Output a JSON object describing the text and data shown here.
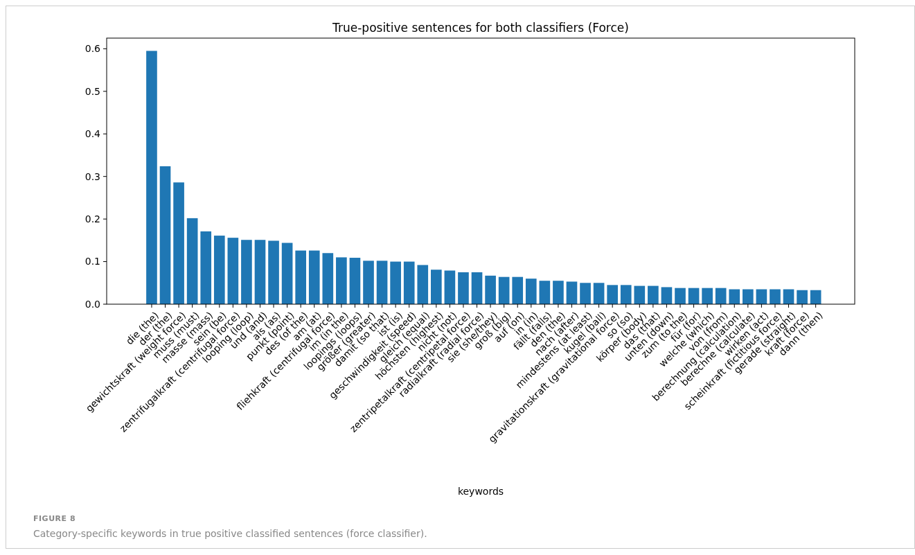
{
  "chart_data": {
    "type": "bar",
    "title": "True-positive sentences for both classifiers (Force)",
    "xlabel": "keywords",
    "categories": [
      "die (the)",
      "der (the)",
      "gewichtskraft (weight force)",
      "muss (must)",
      "masse (mass)",
      "sein (be)",
      "zentrifugalkraft (centrifugal force)",
      "looping (loop)",
      "und (and)",
      "als (as)",
      "punkt (point)",
      "des (of the)",
      "am (at)",
      "fliehkraft (centrifugal force)",
      "im (in the)",
      "loopings (loops)",
      "größer (greater)",
      "damit (so that)",
      "ist (is)",
      "geschwindigkeit (speed)",
      "gleich (equal)",
      "höchsten (highest)",
      "nicht (not)",
      "zentripetalkraft (centripetal force)",
      "radialkraft (radial force)",
      "sie (she/they)",
      "groß (big)",
      "auf (on)",
      "in (in)",
      "fällt (falls)",
      "den (the)",
      "nach (after)",
      "mindestens (at least)",
      "kugel (ball)",
      "gravitationskraft (gravitational force)",
      "so (so)",
      "körper (body)",
      "das (that)",
      "unten (down)",
      "zum (to the)",
      "für (for)",
      "welche (which)",
      "von (from)",
      "berechnung (calculation)",
      "berechne (calculate)",
      "wirken (act)",
      "scheinkraft (fictitious force)",
      "gerade (straight)",
      "kraft (force)",
      "dann (then)"
    ],
    "values": [
      0.595,
      0.324,
      0.286,
      0.202,
      0.171,
      0.161,
      0.156,
      0.151,
      0.151,
      0.149,
      0.144,
      0.126,
      0.126,
      0.12,
      0.11,
      0.109,
      0.102,
      0.102,
      0.1,
      0.1,
      0.092,
      0.081,
      0.079,
      0.075,
      0.075,
      0.067,
      0.064,
      0.064,
      0.06,
      0.055,
      0.055,
      0.053,
      0.05,
      0.05,
      0.045,
      0.045,
      0.043,
      0.043,
      0.04,
      0.038,
      0.038,
      0.038,
      0.038,
      0.035,
      0.035,
      0.035,
      0.035,
      0.035,
      0.033,
      0.033
    ],
    "color": "#1f77b4",
    "ylim": [
      0,
      0.625
    ],
    "yticks": [
      {
        "value": 0,
        "label": "0.0"
      },
      {
        "value": 0.1,
        "label": "0.1"
      },
      {
        "value": 0.2,
        "label": "0.2"
      },
      {
        "value": 0.3,
        "label": "0.3"
      },
      {
        "value": 0.4,
        "label": "0.4"
      },
      {
        "value": 0.5,
        "label": "0.5"
      },
      {
        "value": 0.6,
        "label": "0.6"
      }
    ],
    "annotations": [
      "FIGURE 8",
      "Category-specific keywords in true positive classified sentences (force classifier)."
    ]
  }
}
